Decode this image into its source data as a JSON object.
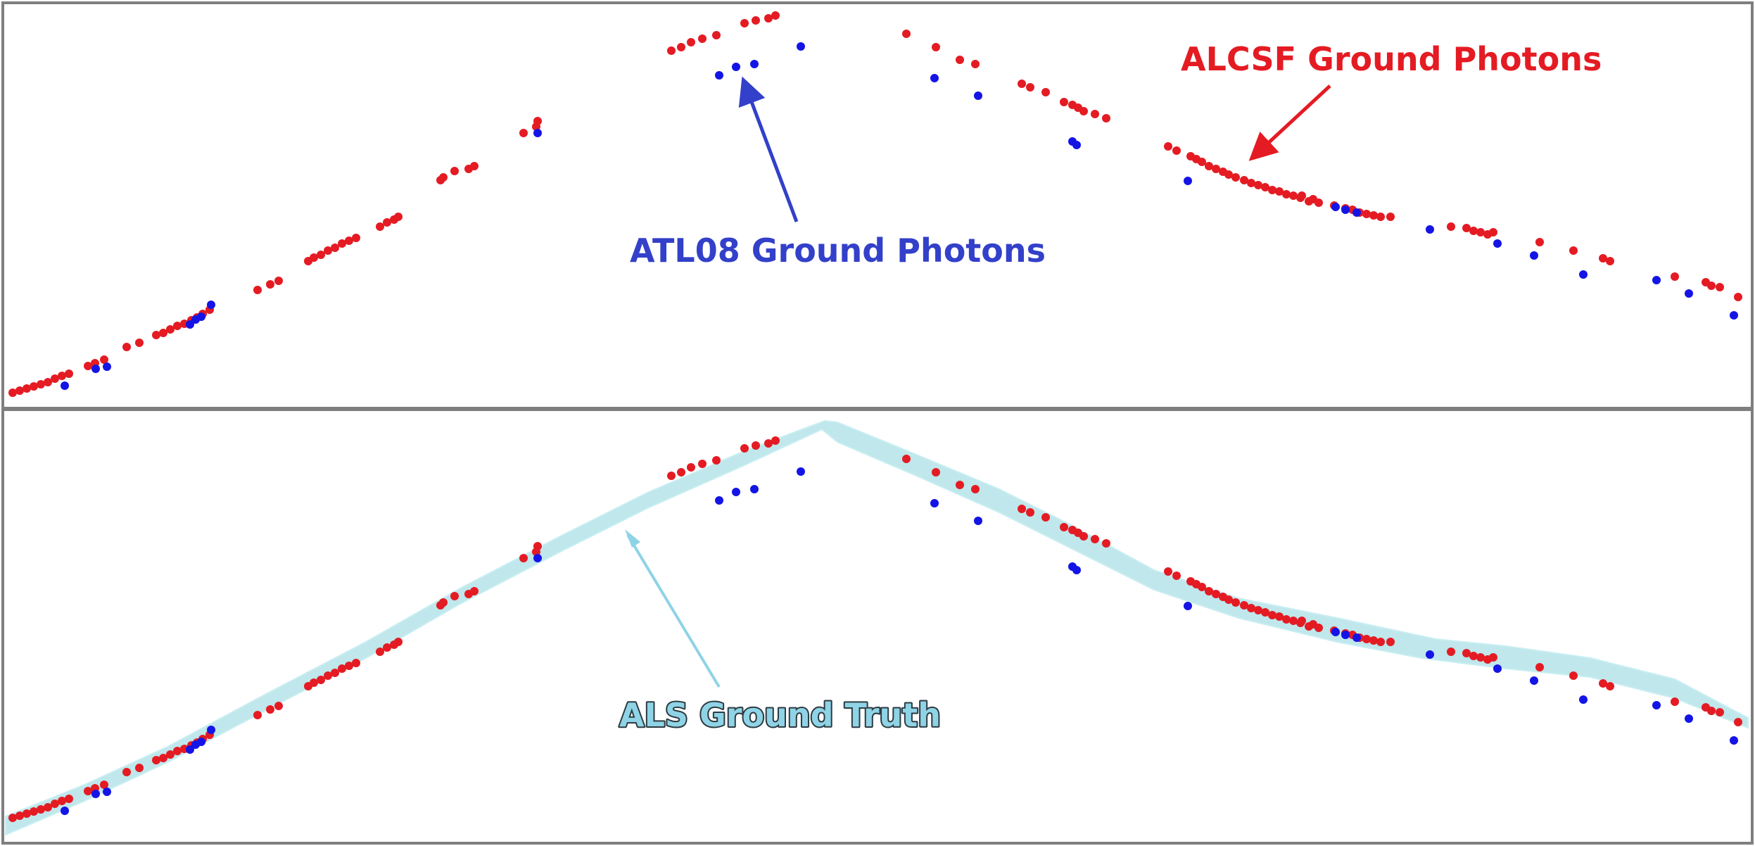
{
  "labels": {
    "atl08": "ATL08 Ground Photons",
    "alcsf": "ALCSF Ground Photons",
    "als": "ALS Ground Truth"
  },
  "colors": {
    "atl08": "#1414e6",
    "alcsf": "#e41b23",
    "als": "#a9dfe6",
    "frame": "#7f7f7f"
  },
  "panels": [
    {
      "id": "top",
      "shows": [
        "alcsf",
        "atl08"
      ]
    },
    {
      "id": "bottom",
      "shows": [
        "als",
        "alcsf",
        "atl08"
      ]
    }
  ]
}
